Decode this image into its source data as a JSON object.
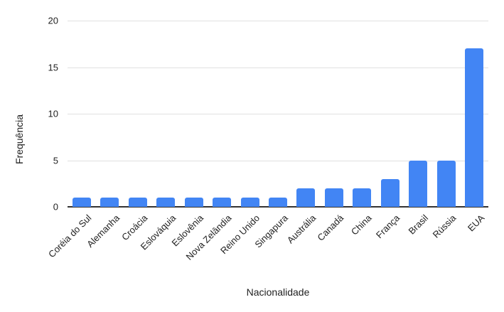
{
  "chart_data": {
    "type": "bar",
    "title": "",
    "categories": [
      "Coréia do Sul",
      "Alemanha",
      "Croácia",
      "Eslováquia",
      "Eslovênia",
      "Nova Zelândia",
      "Reino Unido",
      "Singapura",
      "Austrália",
      "Canadá",
      "China",
      "França",
      "Brasil",
      "Rússia",
      "EUA"
    ],
    "values": [
      1,
      1,
      1,
      1,
      1,
      1,
      1,
      1,
      2,
      2,
      2,
      3,
      5,
      5,
      17
    ],
    "xlabel": "Nacionalidade",
    "ylabel": "Frequência",
    "ylim": [
      0,
      20
    ],
    "yticks": [
      0,
      5,
      10,
      15,
      20
    ],
    "grid": true,
    "legend_position": "none",
    "colors": {
      "bar": "#4285f4",
      "gridline": "#e0e0e0",
      "axis_line": "#333333",
      "text": "#1f1f1f"
    }
  }
}
